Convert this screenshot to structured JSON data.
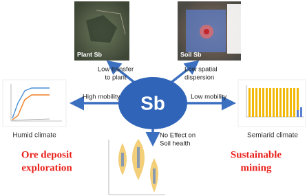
{
  "center": {
    "label": "Sb"
  },
  "images": {
    "plant": {
      "label": "Plant Sb"
    },
    "soil": {
      "label": "Soil Sb"
    }
  },
  "arrows": {
    "up_left": {
      "lines": [
        "Low transfer",
        "to plant"
      ]
    },
    "up_right": {
      "lines": [
        "Low spatial",
        "dispersion"
      ]
    },
    "left": {
      "lines": [
        "High mobility"
      ]
    },
    "right": {
      "lines": [
        "Low mobility"
      ]
    },
    "down": {
      "lines": [
        "No Effect on",
        "Soil health"
      ]
    }
  },
  "climates": {
    "humid": "Humid climate",
    "semiarid": "Semiarid climate"
  },
  "conclusions": {
    "left": [
      "Ore deposit",
      "exploration"
    ],
    "right": [
      "Sustainable",
      "mining"
    ]
  }
}
